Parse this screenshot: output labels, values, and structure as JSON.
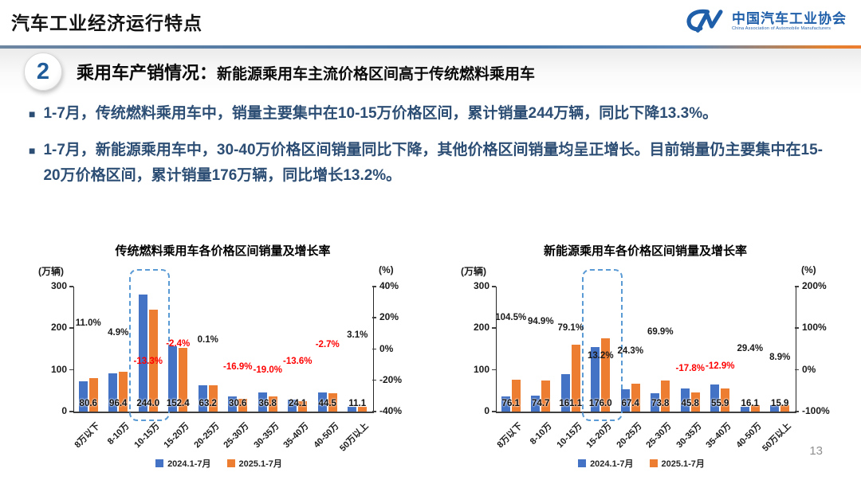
{
  "slide": {
    "title": "汽车工业经济运行特点",
    "page_number": "13"
  },
  "logo": {
    "mark": "CM",
    "org_cn": "中国汽车工业协会",
    "org_en": "China Association of Automobile Manufacturers"
  },
  "section": {
    "number": "2",
    "heading": "乘用车产销情况：",
    "subheading": "新能源乘用车主流价格区间高于传统燃料乘用车"
  },
  "bullets": [
    "1-7月，传统燃料乘用车中，销量主要集中在10-15万价格区间，累计销量244万辆，同比下降13.3%。",
    "1-7月，新能源乘用车中，30-40万价格区间销量同比下降，其他价格区间销量均呈正增长。目前销量仍主要集中在15-20万价格区间，累计销量176万辆，同比增长13.2%。"
  ],
  "colors": {
    "bar_2024": "#4472C4",
    "bar_2025": "#ED7D31",
    "negative_label": "#FF0000",
    "positive_label": "#1A1A1A",
    "body_text": "#2D4E74",
    "logo_blue": "#1F5FA9",
    "highlight_border": "#5B9BD5"
  },
  "chart_data": [
    {
      "type": "bar",
      "title": "传统燃料乘用车各价格区间销量及增长率",
      "unit_left": "(万辆)",
      "unit_right": "(%)",
      "categories": [
        "8万以下",
        "8-10万",
        "10-15万",
        "15-20万",
        "20-25万",
        "25-30万",
        "30-35万",
        "35-40万",
        "40-50万",
        "50万以上"
      ],
      "series": [
        {
          "name": "2024.1-7月",
          "color": "#4472C4",
          "values": [
            72.6,
            91.9,
            281.4,
            156.1,
            63.1,
            36.8,
            45.4,
            27.9,
            45.7,
            10.8
          ]
        },
        {
          "name": "2025.1-7月",
          "color": "#ED7D31",
          "values": [
            80.6,
            96.4,
            244.0,
            152.4,
            63.2,
            30.6,
            36.8,
            24.1,
            44.5,
            11.1
          ]
        }
      ],
      "value_labels": [
        "80.6",
        "96.4",
        "244.0",
        "152.4",
        "63.2",
        "30.6",
        "36.8",
        "24.1",
        "44.5",
        "11.1"
      ],
      "growth_labels": [
        "11.0%",
        "4.9%",
        "-13.3%",
        "-2.4%",
        "0.1%",
        "-16.9%",
        "-19.0%",
        "-13.6%",
        "-2.7%",
        "3.1%"
      ],
      "ylim_left": [
        0,
        300
      ],
      "left_ticks": [
        {
          "v": 300,
          "label": "300"
        },
        {
          "v": 200,
          "label": "200"
        },
        {
          "v": 100,
          "label": "100"
        },
        {
          "v": 0,
          "label": "0"
        }
      ],
      "ylim_right": [
        -40,
        40
      ],
      "right_ticks": [
        {
          "v": 40,
          "label": "40%"
        },
        {
          "v": 20,
          "label": "20%"
        },
        {
          "v": 0,
          "label": "0%"
        },
        {
          "v": -20,
          "label": "-20%"
        },
        {
          "v": -40,
          "label": "-40%"
        }
      ],
      "highlight_index": 2,
      "legend_position": "bottom"
    },
    {
      "type": "bar",
      "title": "新能源乘用车各价格区间销量及增长率",
      "unit_left": "(万辆)",
      "unit_right": "(%)",
      "categories": [
        "8万以下",
        "8-10万",
        "10-15万",
        "15-20万",
        "20-25万",
        "25-30万",
        "30-35万",
        "35-40万",
        "40-50万",
        "50万以上"
      ],
      "series": [
        {
          "name": "2024.1-7月",
          "color": "#4472C4",
          "values": [
            37.2,
            38.3,
            90.0,
            155.5,
            54.2,
            43.4,
            55.7,
            64.2,
            12.4,
            14.6
          ]
        },
        {
          "name": "2025.1-7月",
          "color": "#ED7D31",
          "values": [
            76.1,
            74.7,
            161.1,
            176.0,
            67.4,
            73.8,
            45.8,
            55.9,
            16.1,
            15.9
          ]
        }
      ],
      "value_labels": [
        "76.1",
        "74.7",
        "161.1",
        "176.0",
        "67.4",
        "73.8",
        "45.8",
        "55.9",
        "16.1",
        "15.9"
      ],
      "growth_labels": [
        "104.5%",
        "94.9%",
        "79.1%",
        "13.2%",
        "24.3%",
        "69.9%",
        "-17.8%",
        "-12.9%",
        "29.4%",
        "8.9%"
      ],
      "ylim_left": [
        0,
        300
      ],
      "left_ticks": [
        {
          "v": 300,
          "label": "300"
        },
        {
          "v": 200,
          "label": "200"
        },
        {
          "v": 100,
          "label": "100"
        },
        {
          "v": 0,
          "label": "0"
        }
      ],
      "ylim_right": [
        -100,
        200
      ],
      "right_ticks": [
        {
          "v": 200,
          "label": "200%"
        },
        {
          "v": 100,
          "label": "100%"
        },
        {
          "v": 0,
          "label": "0%"
        },
        {
          "v": -100,
          "label": "-100%"
        }
      ],
      "highlight_index": 3,
      "legend_position": "bottom"
    }
  ]
}
